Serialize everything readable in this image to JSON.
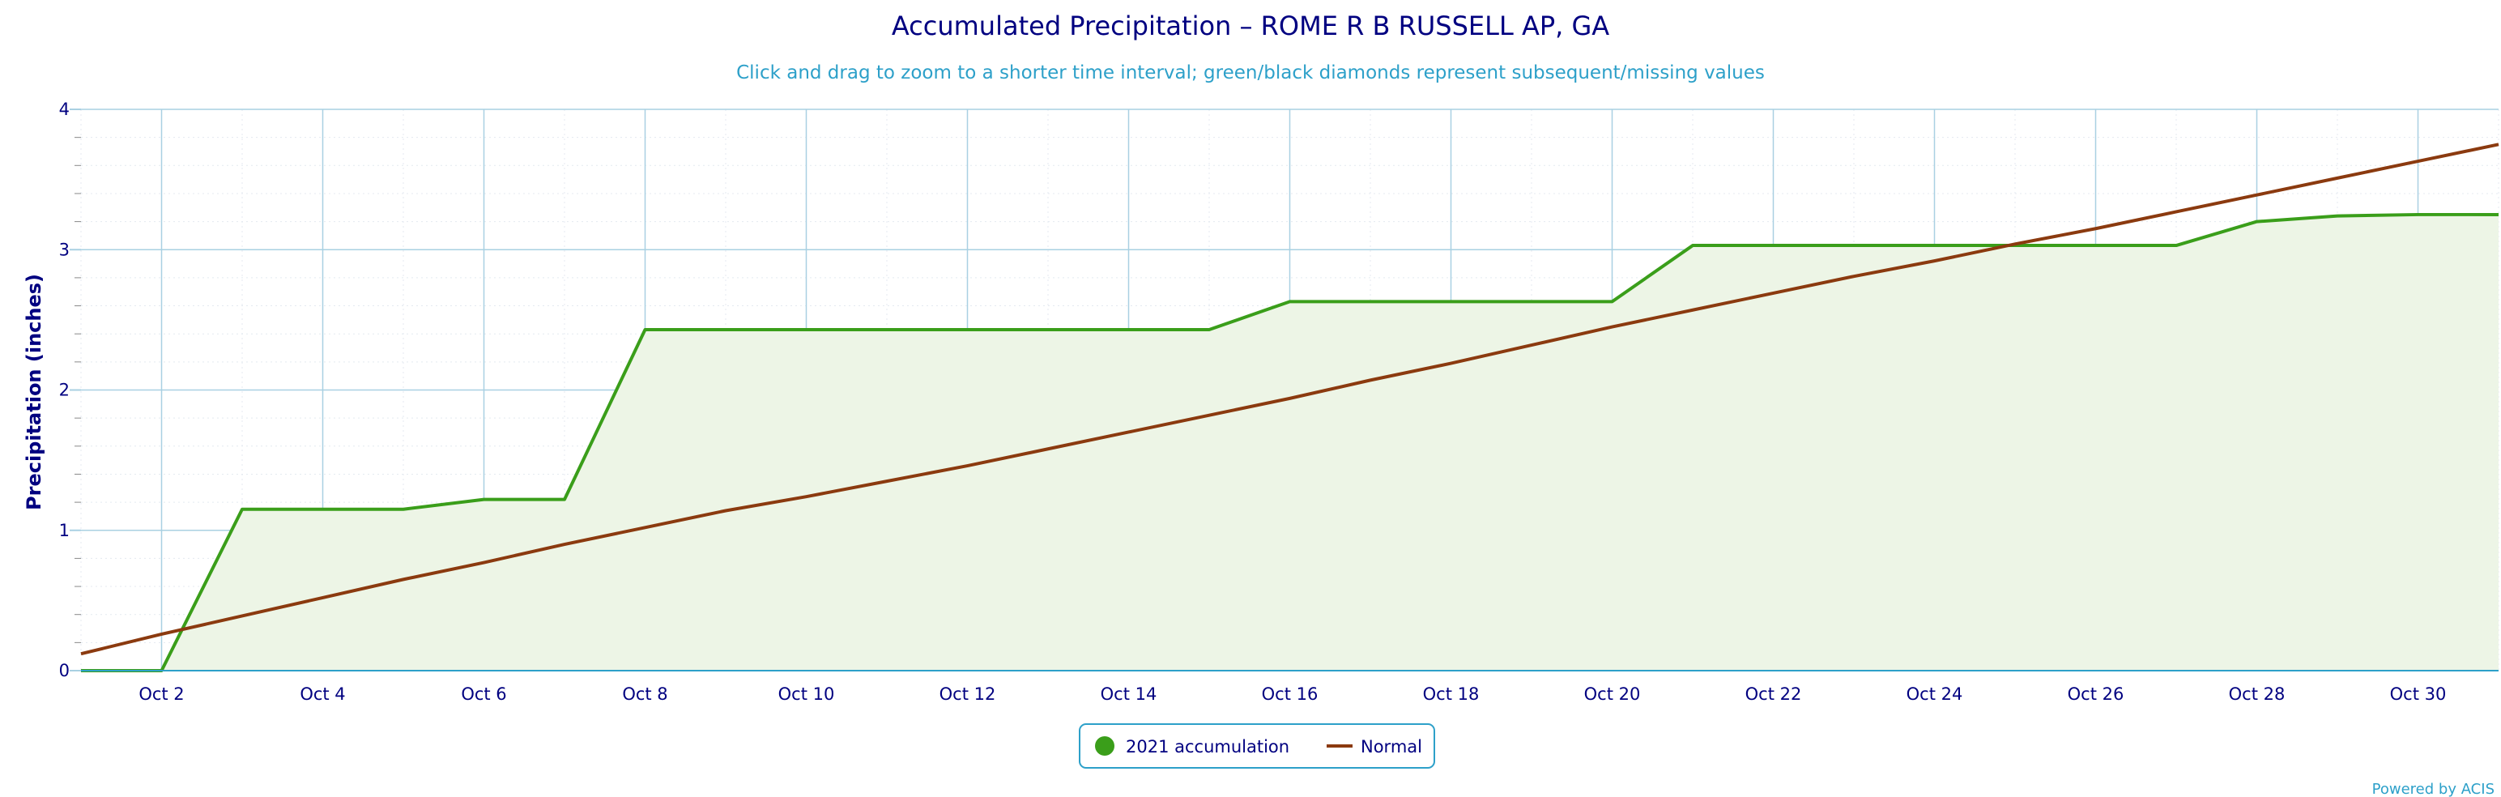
{
  "chart_data": {
    "type": "line",
    "title": "Accumulated Precipitation – ROME R B RUSSELL AP, GA",
    "subtitle": "Click and drag to zoom to a shorter time interval; green/black diamonds represent subsequent/missing values",
    "ylabel": "Precipitation (inches)",
    "xlabel": "",
    "ylim": [
      0,
      4
    ],
    "xlim": [
      1,
      31
    ],
    "y_ticks": [
      0,
      1,
      2,
      3,
      4
    ],
    "x_ticks": [
      {
        "day": 2,
        "label": "Oct 2"
      },
      {
        "day": 4,
        "label": "Oct 4"
      },
      {
        "day": 6,
        "label": "Oct 6"
      },
      {
        "day": 8,
        "label": "Oct 8"
      },
      {
        "day": 10,
        "label": "Oct 10"
      },
      {
        "day": 12,
        "label": "Oct 12"
      },
      {
        "day": 14,
        "label": "Oct 14"
      },
      {
        "day": 16,
        "label": "Oct 16"
      },
      {
        "day": 18,
        "label": "Oct 18"
      },
      {
        "day": 20,
        "label": "Oct 20"
      },
      {
        "day": 22,
        "label": "Oct 22"
      },
      {
        "day": 24,
        "label": "Oct 24"
      },
      {
        "day": 26,
        "label": "Oct 26"
      },
      {
        "day": 28,
        "label": "Oct 28"
      },
      {
        "day": 30,
        "label": "Oct 30"
      }
    ],
    "grid": true,
    "legend_position": "bottom-center",
    "series": [
      {
        "name": "2021 accumulation",
        "color": "#3a9e1a",
        "fill": "#edf5e6",
        "x": [
          1,
          2,
          3,
          4,
          5,
          6,
          7,
          8,
          9,
          10,
          11,
          12,
          13,
          14,
          15,
          16,
          17,
          18,
          19,
          20,
          21,
          22,
          23,
          24,
          25,
          26,
          27,
          28,
          29,
          30,
          31
        ],
        "values": [
          0.0,
          0.0,
          1.15,
          1.15,
          1.15,
          1.22,
          1.22,
          2.43,
          2.43,
          2.43,
          2.43,
          2.43,
          2.43,
          2.43,
          2.43,
          2.63,
          2.63,
          2.63,
          2.63,
          2.63,
          3.03,
          3.03,
          3.03,
          3.03,
          3.03,
          3.03,
          3.03,
          3.2,
          3.24,
          3.25,
          3.25
        ]
      },
      {
        "name": "Normal",
        "color": "#8b3a0f",
        "x": [
          1,
          2,
          3,
          4,
          5,
          6,
          7,
          8,
          9,
          10,
          11,
          12,
          13,
          14,
          15,
          16,
          17,
          18,
          19,
          20,
          21,
          22,
          23,
          24,
          25,
          26,
          27,
          28,
          29,
          30,
          31
        ],
        "values": [
          0.12,
          0.26,
          0.39,
          0.52,
          0.65,
          0.77,
          0.9,
          1.02,
          1.14,
          1.24,
          1.35,
          1.46,
          1.58,
          1.7,
          1.82,
          1.94,
          2.07,
          2.19,
          2.32,
          2.45,
          2.57,
          2.69,
          2.81,
          2.92,
          3.04,
          3.15,
          3.27,
          3.39,
          3.51,
          3.63,
          3.75
        ]
      }
    ]
  },
  "credit": "Powered by ACIS"
}
